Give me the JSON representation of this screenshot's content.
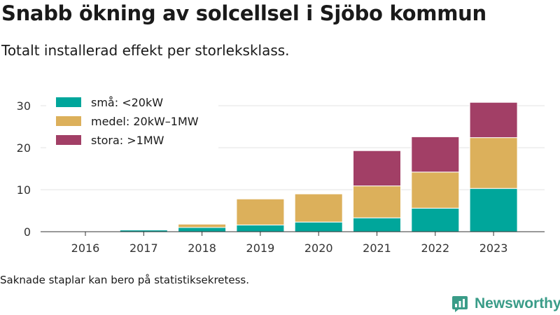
{
  "title": "Snabb ökning av solcellsel i Sjöbo kommun",
  "subtitle": "Totalt installerad effekt per storleksklass.",
  "footnote": "Saknade staplar kan bero på statistiksekretess.",
  "brand": {
    "name": "Newsworthy",
    "logo_icon": "bar-chart-logo-icon",
    "color": "#3a9c88"
  },
  "chart_data": {
    "type": "bar",
    "stacked": true,
    "categories": [
      "2016",
      "2017",
      "2018",
      "2019",
      "2020",
      "2021",
      "2022",
      "2023"
    ],
    "series": [
      {
        "name": "små: <20kW",
        "color": "#00a69b",
        "values": [
          0.05,
          0.4,
          1.0,
          1.6,
          2.3,
          3.3,
          5.6,
          10.3
        ]
      },
      {
        "name": "medel: 20kW–1MW",
        "color": "#dcb05b",
        "values": [
          0.0,
          0.0,
          0.8,
          6.2,
          6.7,
          7.6,
          8.6,
          12.1
        ]
      },
      {
        "name": "stora: >1MW",
        "color": "#a23f66",
        "values": [
          0.0,
          0.0,
          0.0,
          0.0,
          0.0,
          8.4,
          8.4,
          8.4
        ]
      }
    ],
    "yticks": [
      0,
      10,
      20,
      30
    ],
    "ylim": [
      0,
      33
    ],
    "xlabel": "",
    "ylabel": "",
    "grid": true,
    "legend_position": "top-left"
  }
}
